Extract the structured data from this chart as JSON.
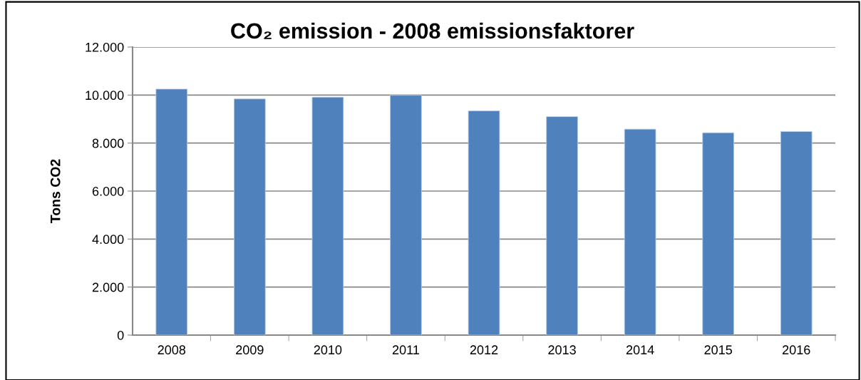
{
  "chart_data": {
    "type": "bar",
    "title": "CO₂ emission - 2008 emissionsfaktorer",
    "ylabel": "Tons CO2",
    "categories": [
      "2008",
      "2009",
      "2010",
      "2011",
      "2012",
      "2013",
      "2014",
      "2015",
      "2016"
    ],
    "values": [
      10250,
      9840,
      9910,
      9990,
      9340,
      9100,
      8580,
      8430,
      8480
    ],
    "color": "#4f81bd",
    "ylim": [
      0,
      12000
    ],
    "yticks": [
      {
        "value": 0,
        "label": "0"
      },
      {
        "value": 2000,
        "label": "2.000"
      },
      {
        "value": 4000,
        "label": "4.000"
      },
      {
        "value": 6000,
        "label": "6.000"
      },
      {
        "value": 8000,
        "label": "8.000"
      },
      {
        "value": 10000,
        "label": "10.000"
      },
      {
        "value": 12000,
        "label": "12.000"
      }
    ],
    "grid": "y",
    "legend": false
  }
}
